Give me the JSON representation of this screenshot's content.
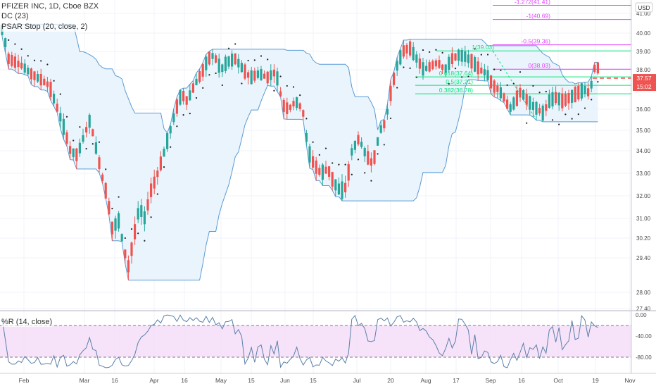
{
  "header": {
    "symbol_title": "PFIZER INC, 1D, Cboe BZX",
    "indicator_dc": "DC (23)",
    "indicator_psar": "PSAR Stop (20, close, 2)",
    "indicator_wr": "%R (14, close)",
    "currency": "USD"
  },
  "chart_data": {
    "type": "candlestick",
    "y_axis": {
      "ticks": [
        "41.00",
        "40.00",
        "39.00",
        "38.00",
        "36.00",
        "35.00",
        "34.00",
        "33.00",
        "32.00",
        "31.00",
        "30.20",
        "29.40",
        "28.00",
        "27.40"
      ]
    },
    "x_axis": {
      "ticks": [
        "Feb",
        "Mar",
        "16",
        "Apr",
        "16",
        "May",
        "15",
        "Jun",
        "15",
        "Jul",
        "20",
        "Aug",
        "17",
        "Sep",
        "16",
        "Oct",
        "19",
        "Nov"
      ]
    },
    "price_labels": {
      "last_price": "37.57",
      "countdown": "15:02",
      "last_color": "#ef5350",
      "countdown_color": "#ef5350"
    },
    "fibonacci": [
      {
        "label": "-1.272(41.41)",
        "value": 41.41,
        "color": "#e040fb"
      },
      {
        "label": "-1(40.69)",
        "value": 40.69,
        "color": "#e040fb"
      },
      {
        "label": "-0.5(39.36)",
        "value": 39.36,
        "color": "#e040fb"
      },
      {
        "label": "1(39.03)",
        "value": 39.03,
        "color": "#00e676"
      },
      {
        "label": "0(38.03)",
        "value": 38.03,
        "color": "#e040fb"
      },
      {
        "label": "0.618(37.64)",
        "value": 37.64,
        "color": "#00e676"
      },
      {
        "label": "0.5(37.21)",
        "value": 37.21,
        "color": "#00e676"
      },
      {
        "label": "0.382(36.78)",
        "value": 36.78,
        "color": "#00e676"
      }
    ],
    "williams_r": {
      "ticks": [
        "0.00",
        "-40.00",
        "-80.00"
      ],
      "bands": [
        -20,
        -80
      ]
    },
    "colors": {
      "up": "#26a69a",
      "down": "#ef5350",
      "donchian": "#5b9bd5",
      "donchian_fill": "#e6f2fb",
      "psar": "#222222",
      "wr_line": "#5b7fa8",
      "wr_band": "#f3d9f7"
    }
  }
}
